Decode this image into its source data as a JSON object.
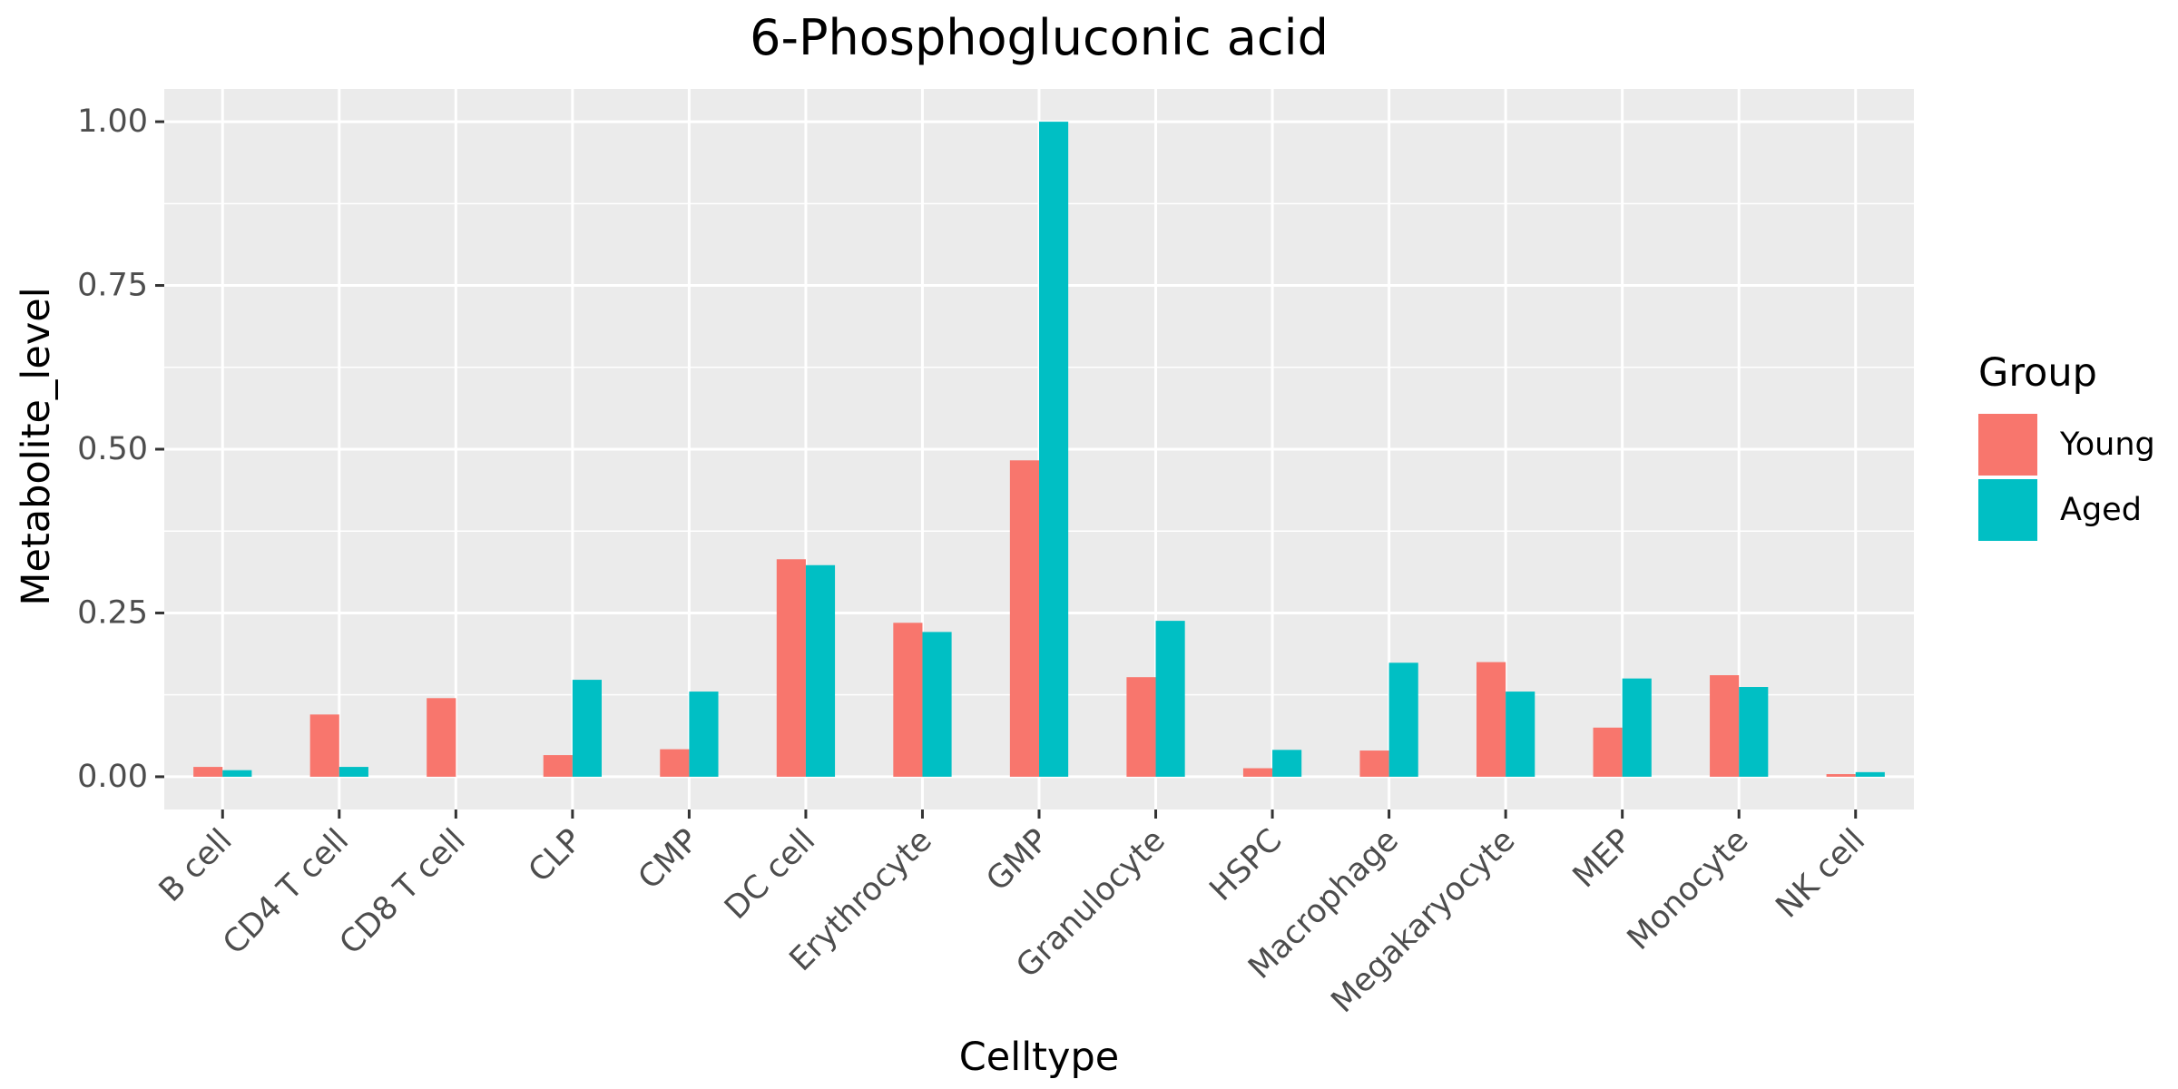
{
  "chart_data": {
    "type": "bar",
    "title": "6-Phosphogluconic acid",
    "xlabel": "Celltype",
    "ylabel": "Metabolite_level",
    "ylim": [
      -0.05,
      1.05
    ],
    "yticks": [
      0,
      0.25,
      0.5,
      0.75,
      1
    ],
    "ytick_labels": [
      "0.00",
      "0.25",
      "0.50",
      "0.75",
      "1.00"
    ],
    "grid": true,
    "legend": {
      "title": "Group",
      "position": "right"
    },
    "categories": [
      "B cell",
      "CD4 T cell",
      "CD8 T cell",
      "CLP",
      "CMP",
      "DC cell",
      "Erythrocyte",
      "GMP",
      "Granulocyte",
      "HSPC",
      "Macrophage",
      "Megakaryocyte",
      "MEP",
      "Monocyte",
      "NK cell"
    ],
    "series": [
      {
        "name": "Young",
        "color": "#F8766D",
        "values": [
          0.015,
          0.095,
          0.12,
          0.033,
          0.042,
          0.332,
          0.235,
          0.483,
          0.152,
          0.013,
          0.04,
          0.175,
          0.075,
          0.155,
          0.004
        ]
      },
      {
        "name": "Aged",
        "color": "#00BFC4",
        "values": [
          0.01,
          0.015,
          0.0,
          0.148,
          0.13,
          0.323,
          0.221,
          1.0,
          0.238,
          0.041,
          0.174,
          0.13,
          0.15,
          0.137,
          0.007
        ]
      }
    ]
  },
  "style": {
    "panel_background": "#EBEBEB",
    "grid_color": "#FFFFFF",
    "tick_color": "#333333"
  }
}
